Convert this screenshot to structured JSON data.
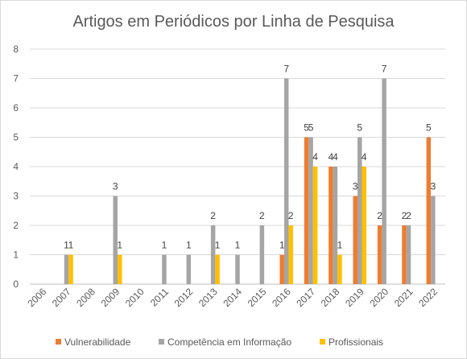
{
  "chart_data": {
    "type": "bar",
    "title": "Artigos em Periódicos por Linha de Pesquisa",
    "xlabel": "",
    "ylabel": "",
    "categories": [
      "2006",
      "2007",
      "2008",
      "2009",
      "2010",
      "2011",
      "2012",
      "2013",
      "2014",
      "2015",
      "2016",
      "2017",
      "2018",
      "2019",
      "2020",
      "2021",
      "2022"
    ],
    "ylim": [
      0,
      8
    ],
    "yticks": [
      0,
      1,
      2,
      3,
      4,
      5,
      6,
      7,
      8
    ],
    "grid": true,
    "legend_position": "bottom",
    "series": [
      {
        "name": "Vulnerabilidade",
        "color": "#ED7D31",
        "values": [
          0,
          0,
          0,
          0,
          0,
          0,
          0,
          0,
          0,
          0,
          1,
          5,
          4,
          3,
          2,
          2,
          5
        ]
      },
      {
        "name": "Competência em Informação",
        "color": "#A5A5A5",
        "values": [
          0,
          1,
          0,
          3,
          0,
          1,
          1,
          2,
          1,
          2,
          7,
          5,
          4,
          5,
          7,
          2,
          3
        ]
      },
      {
        "name": "Profissionais",
        "color": "#FFC000",
        "values": [
          0,
          1,
          0,
          1,
          0,
          0,
          0,
          1,
          0,
          0,
          2,
          4,
          1,
          4,
          0,
          0,
          0
        ]
      }
    ]
  }
}
